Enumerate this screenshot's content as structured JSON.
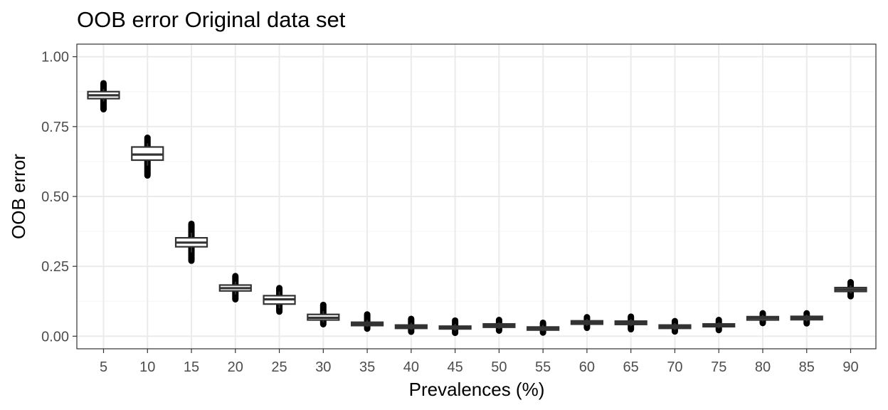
{
  "chart_data": {
    "type": "boxplot",
    "title": "OOB error Original data set",
    "xlabel": "Prevalences (%)",
    "ylabel": "OOB error",
    "ylim": [
      0,
      1
    ],
    "yticks": [
      "0.00",
      "0.25",
      "0.50",
      "0.75",
      "1.00"
    ],
    "grid": true,
    "theme": "white background, light grey gridlines, black panel border",
    "categories": [
      "5",
      "10",
      "15",
      "20",
      "25",
      "30",
      "35",
      "40",
      "45",
      "50",
      "55",
      "60",
      "65",
      "70",
      "75",
      "80",
      "85",
      "90"
    ],
    "series": [
      {
        "category": "5",
        "q1": 0.85,
        "median": 0.862,
        "q3": 0.875,
        "whisker_low": 0.84,
        "whisker_high": 0.885,
        "outliers_min": 0.812,
        "outliers_max": 0.905
      },
      {
        "category": "10",
        "q1": 0.63,
        "median": 0.65,
        "q3": 0.677,
        "whisker_low": 0.61,
        "whisker_high": 0.69,
        "outliers_min": 0.575,
        "outliers_max": 0.71
      },
      {
        "category": "15",
        "q1": 0.32,
        "median": 0.335,
        "q3": 0.352,
        "whisker_low": 0.3,
        "whisker_high": 0.37,
        "outliers_min": 0.27,
        "outliers_max": 0.402
      },
      {
        "category": "20",
        "q1": 0.162,
        "median": 0.172,
        "q3": 0.183,
        "whisker_low": 0.15,
        "whisker_high": 0.195,
        "outliers_min": 0.132,
        "outliers_max": 0.215
      },
      {
        "category": "25",
        "q1": 0.115,
        "median": 0.132,
        "q3": 0.145,
        "whisker_low": 0.1,
        "whisker_high": 0.16,
        "outliers_min": 0.088,
        "outliers_max": 0.172
      },
      {
        "category": "30",
        "q1": 0.058,
        "median": 0.066,
        "q3": 0.078,
        "whisker_low": 0.05,
        "whisker_high": 0.09,
        "outliers_min": 0.043,
        "outliers_max": 0.112
      },
      {
        "category": "35",
        "q1": 0.038,
        "median": 0.044,
        "q3": 0.05,
        "whisker_low": 0.033,
        "whisker_high": 0.058,
        "outliers_min": 0.027,
        "outliers_max": 0.078
      },
      {
        "category": "40",
        "q1": 0.028,
        "median": 0.034,
        "q3": 0.04,
        "whisker_low": 0.023,
        "whisker_high": 0.048,
        "outliers_min": 0.016,
        "outliers_max": 0.062
      },
      {
        "category": "45",
        "q1": 0.026,
        "median": 0.031,
        "q3": 0.036,
        "whisker_low": 0.02,
        "whisker_high": 0.044,
        "outliers_min": 0.012,
        "outliers_max": 0.056
      },
      {
        "category": "50",
        "q1": 0.032,
        "median": 0.038,
        "q3": 0.044,
        "whisker_low": 0.026,
        "whisker_high": 0.05,
        "outliers_min": 0.02,
        "outliers_max": 0.058
      },
      {
        "category": "55",
        "q1": 0.022,
        "median": 0.028,
        "q3": 0.033,
        "whisker_low": 0.018,
        "whisker_high": 0.04,
        "outliers_min": 0.013,
        "outliers_max": 0.048
      },
      {
        "category": "60",
        "q1": 0.043,
        "median": 0.049,
        "q3": 0.055,
        "whisker_low": 0.037,
        "whisker_high": 0.062,
        "outliers_min": 0.03,
        "outliers_max": 0.068
      },
      {
        "category": "65",
        "q1": 0.042,
        "median": 0.048,
        "q3": 0.054,
        "whisker_low": 0.036,
        "whisker_high": 0.062,
        "outliers_min": 0.025,
        "outliers_max": 0.07
      },
      {
        "category": "70",
        "q1": 0.028,
        "median": 0.034,
        "q3": 0.04,
        "whisker_low": 0.022,
        "whisker_high": 0.047,
        "outliers_min": 0.017,
        "outliers_max": 0.054
      },
      {
        "category": "75",
        "q1": 0.034,
        "median": 0.039,
        "q3": 0.044,
        "whisker_low": 0.028,
        "whisker_high": 0.05,
        "outliers_min": 0.022,
        "outliers_max": 0.058
      },
      {
        "category": "80",
        "q1": 0.058,
        "median": 0.065,
        "q3": 0.07,
        "whisker_low": 0.053,
        "whisker_high": 0.076,
        "outliers_min": 0.047,
        "outliers_max": 0.082
      },
      {
        "category": "85",
        "q1": 0.059,
        "median": 0.065,
        "q3": 0.071,
        "whisker_low": 0.053,
        "whisker_high": 0.077,
        "outliers_min": 0.046,
        "outliers_max": 0.082
      },
      {
        "category": "90",
        "q1": 0.16,
        "median": 0.167,
        "q3": 0.174,
        "whisker_low": 0.153,
        "whisker_high": 0.182,
        "outliers_min": 0.143,
        "outliers_max": 0.193
      }
    ],
    "colors": {
      "box_outline": "#333333",
      "box_fill": "#ffffff",
      "outlier": "#000000",
      "grid_major": "#ebebeb",
      "grid_minor": "#f5f5f5",
      "panel_border": "#333333",
      "tick_label": "#4d4d4d"
    }
  }
}
